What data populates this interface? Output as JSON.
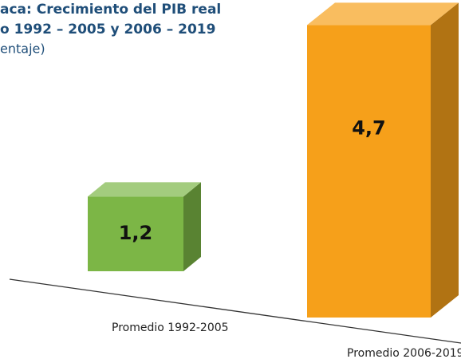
{
  "chart_data": {
    "type": "bar3d",
    "title": [
      "aca: Crecimiento del PIB real",
      "o 1992 – 2005 y 2006 – 2019"
    ],
    "subtitle": "entaje)",
    "categories": [
      "Promedio 1992-2005",
      "Promedio 2006-2019"
    ],
    "values": [
      1.2,
      4.7
    ],
    "value_labels": [
      "1,2",
      "4,7"
    ],
    "colors": [
      "#7cb646",
      "#f6a01a"
    ]
  }
}
